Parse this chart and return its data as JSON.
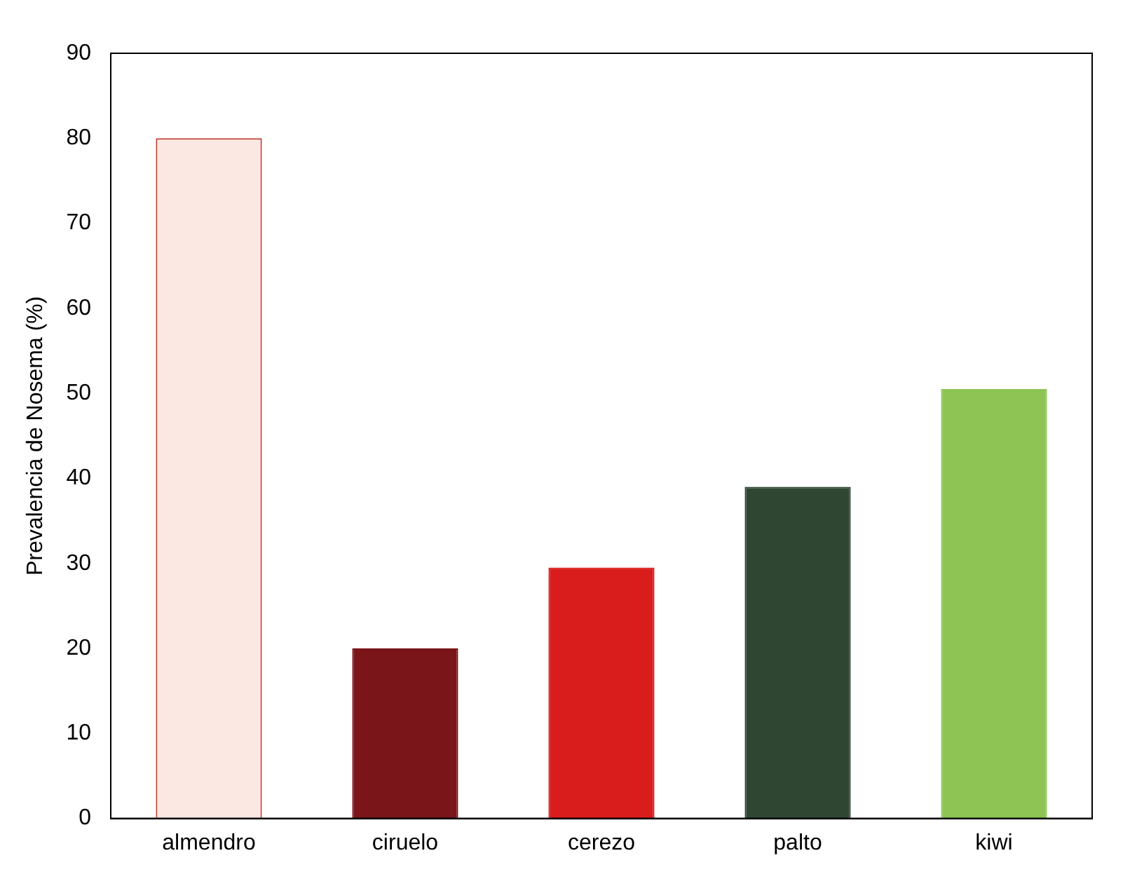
{
  "chart_data": {
    "type": "bar",
    "ylabel": "Prevalencia de Nosema (%)",
    "categories": [
      "almendro",
      "ciruelo",
      "cerezo",
      "palto",
      "kiwi"
    ],
    "values": [
      80,
      20,
      29.5,
      39,
      50.5
    ],
    "colors": [
      "#fbe8e2",
      "#7a1519",
      "#d91c1c",
      "#2e4632",
      "#8dc453"
    ],
    "ylim": [
      0,
      90
    ],
    "yticks": [
      0,
      10,
      20,
      30,
      40,
      50,
      60,
      70,
      80,
      90
    ],
    "grid": false,
    "legend": false
  }
}
